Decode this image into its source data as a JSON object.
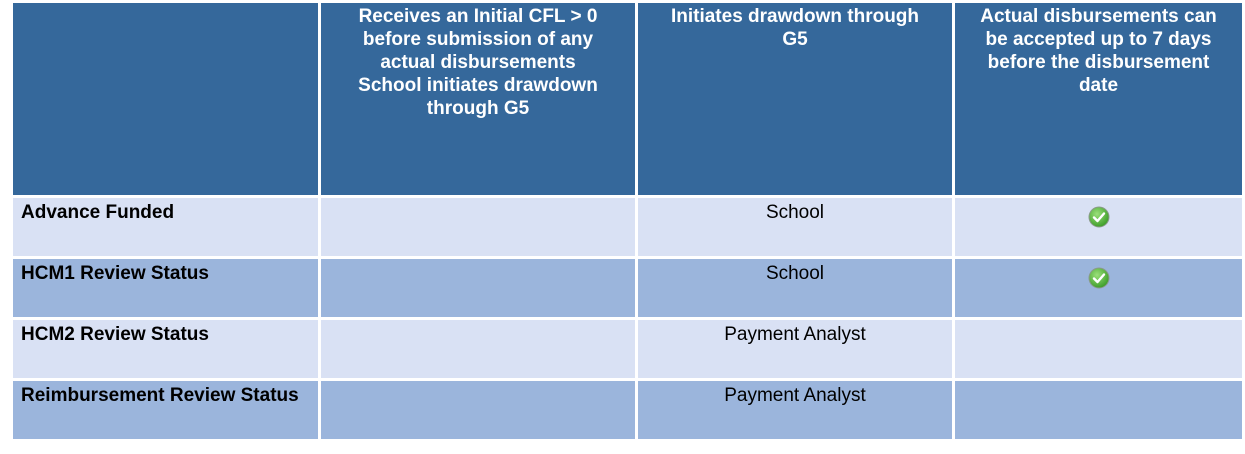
{
  "table": {
    "header": [
      null,
      [
        "Receives an Initial CFL > 0 before submission of any actual disbursements",
        "School initiates drawdown through G5"
      ],
      [
        "Initiates drawdown through G5"
      ],
      [
        "Actual disbursements can be accepted up to 7 days before the disbursement date"
      ]
    ],
    "rows": [
      [
        "Advance Funded",
        null,
        "School",
        true
      ],
      [
        "HCM1 Review Status",
        null,
        "School",
        true
      ],
      [
        "HCM2 Review Status",
        null,
        "Payment Analyst",
        null
      ],
      [
        "Reimbursement Review Status",
        null,
        "Payment Analyst",
        null
      ]
    ]
  }
}
